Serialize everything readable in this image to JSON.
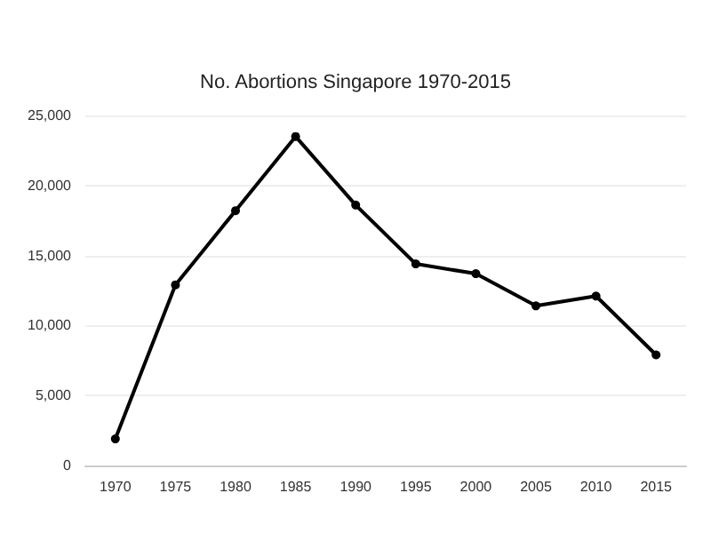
{
  "chart_data": {
    "type": "line",
    "title": "No. Abortions Singapore 1970-2015",
    "categories": [
      "1970",
      "1975",
      "1980",
      "1985",
      "1990",
      "1995",
      "2000",
      "2005",
      "2010",
      "2015"
    ],
    "series": [
      {
        "color": "#000000",
        "values": [
          1900,
          12900,
          18200,
          23500,
          18600,
          14400,
          13700,
          11400,
          12100,
          7900
        ]
      }
    ],
    "ylim": [
      0,
      25000
    ],
    "yticks": [
      {
        "value": 0,
        "label": "0"
      },
      {
        "value": 5000,
        "label": "5,000"
      },
      {
        "value": 10000,
        "label": "10,000"
      },
      {
        "value": 15000,
        "label": "15,000"
      },
      {
        "value": 20000,
        "label": "20,000"
      },
      {
        "value": 25000,
        "label": "25,000"
      }
    ],
    "grid": "y",
    "marker": "circle",
    "line_style": "solid"
  }
}
